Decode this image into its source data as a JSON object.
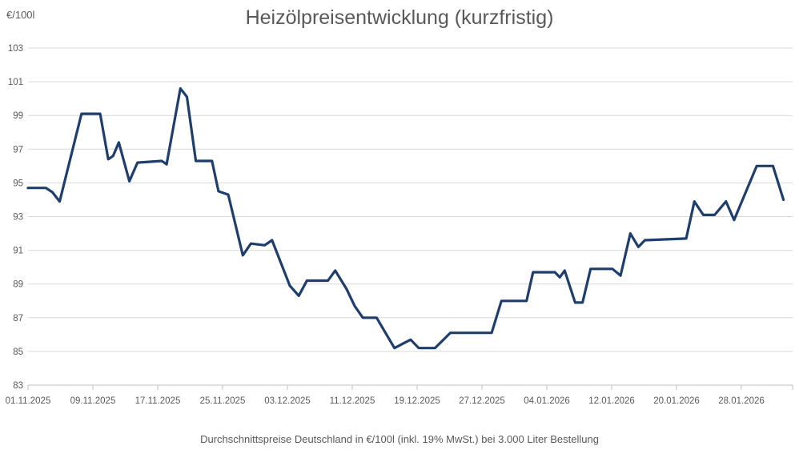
{
  "chart_data": {
    "type": "line",
    "title": "Heizölpreisentwicklung (kurzfristig)",
    "y_unit": "€/100l",
    "footnote": "Durchschnittspreise Deutschland in €/100l (inkl. 19% MwSt.) bei 3.000 Liter Bestellung",
    "ylabel": "€/100l",
    "ylim": [
      83,
      103
    ],
    "y_ticks": [
      83,
      85,
      87,
      89,
      91,
      93,
      95,
      97,
      99,
      101,
      103
    ],
    "x_tick_labels": [
      "01.11.2025",
      "09.11.2025",
      "17.11.2025",
      "25.11.2025",
      "03.12.2025",
      "11.12.2025",
      "19.12.2025",
      "27.12.2025",
      "04.01.2026",
      "12.01.2026",
      "20.01.2026",
      "28.01.2026"
    ],
    "x_tick_days": [
      0,
      8,
      16,
      24,
      32,
      40,
      48,
      56,
      64,
      72,
      80,
      88
    ],
    "x_domain_days": [
      0,
      94.3
    ],
    "grid": true,
    "legend": "none",
    "line_color": "#1f3e6e",
    "grid_color": "#d9d9d9",
    "axis_color": "#bfbfbf",
    "text_color": "#595959",
    "series": [
      {
        "points_format": "[day_offset_from_01.11.2025, price_eur_per_100l]",
        "points": [
          [
            0,
            94.7
          ],
          [
            2.2,
            94.7
          ],
          [
            3.0,
            94.45
          ],
          [
            3.9,
            93.9
          ],
          [
            6.6,
            99.1
          ],
          [
            8.9,
            99.1
          ],
          [
            9.9,
            96.4
          ],
          [
            10.5,
            96.6
          ],
          [
            11.2,
            97.4
          ],
          [
            12.5,
            95.1
          ],
          [
            13.5,
            96.2
          ],
          [
            16.5,
            96.3
          ],
          [
            17.1,
            96.1
          ],
          [
            18.8,
            100.6
          ],
          [
            19.6,
            100.1
          ],
          [
            20.7,
            96.3
          ],
          [
            22.7,
            96.3
          ],
          [
            23.5,
            94.5
          ],
          [
            24.7,
            94.3
          ],
          [
            26.5,
            90.7
          ],
          [
            27.5,
            91.4
          ],
          [
            29.2,
            91.3
          ],
          [
            30.1,
            91.6
          ],
          [
            32.3,
            88.9
          ],
          [
            33.4,
            88.3
          ],
          [
            34.4,
            89.2
          ],
          [
            37.0,
            89.2
          ],
          [
            37.9,
            89.8
          ],
          [
            39.3,
            88.7
          ],
          [
            40.3,
            87.7
          ],
          [
            41.3,
            87.0
          ],
          [
            43.0,
            87.0
          ],
          [
            45.2,
            85.2
          ],
          [
            47.2,
            85.7
          ],
          [
            48.2,
            85.2
          ],
          [
            50.2,
            85.2
          ],
          [
            52.1,
            86.1
          ],
          [
            57.2,
            86.1
          ],
          [
            58.4,
            88.0
          ],
          [
            61.5,
            88.0
          ],
          [
            62.3,
            89.7
          ],
          [
            65.0,
            89.7
          ],
          [
            65.6,
            89.4
          ],
          [
            66.2,
            89.8
          ],
          [
            67.5,
            87.9
          ],
          [
            68.4,
            87.9
          ],
          [
            69.4,
            89.9
          ],
          [
            72.1,
            89.9
          ],
          [
            73.1,
            89.5
          ],
          [
            74.3,
            92.0
          ],
          [
            75.3,
            91.2
          ],
          [
            76.1,
            91.6
          ],
          [
            81.2,
            91.7
          ],
          [
            82.2,
            93.9
          ],
          [
            83.3,
            93.1
          ],
          [
            84.7,
            93.1
          ],
          [
            86.1,
            93.9
          ],
          [
            87.1,
            92.8
          ],
          [
            89.9,
            96.0
          ],
          [
            91.9,
            96.0
          ],
          [
            93.2,
            94.0
          ]
        ]
      }
    ]
  }
}
